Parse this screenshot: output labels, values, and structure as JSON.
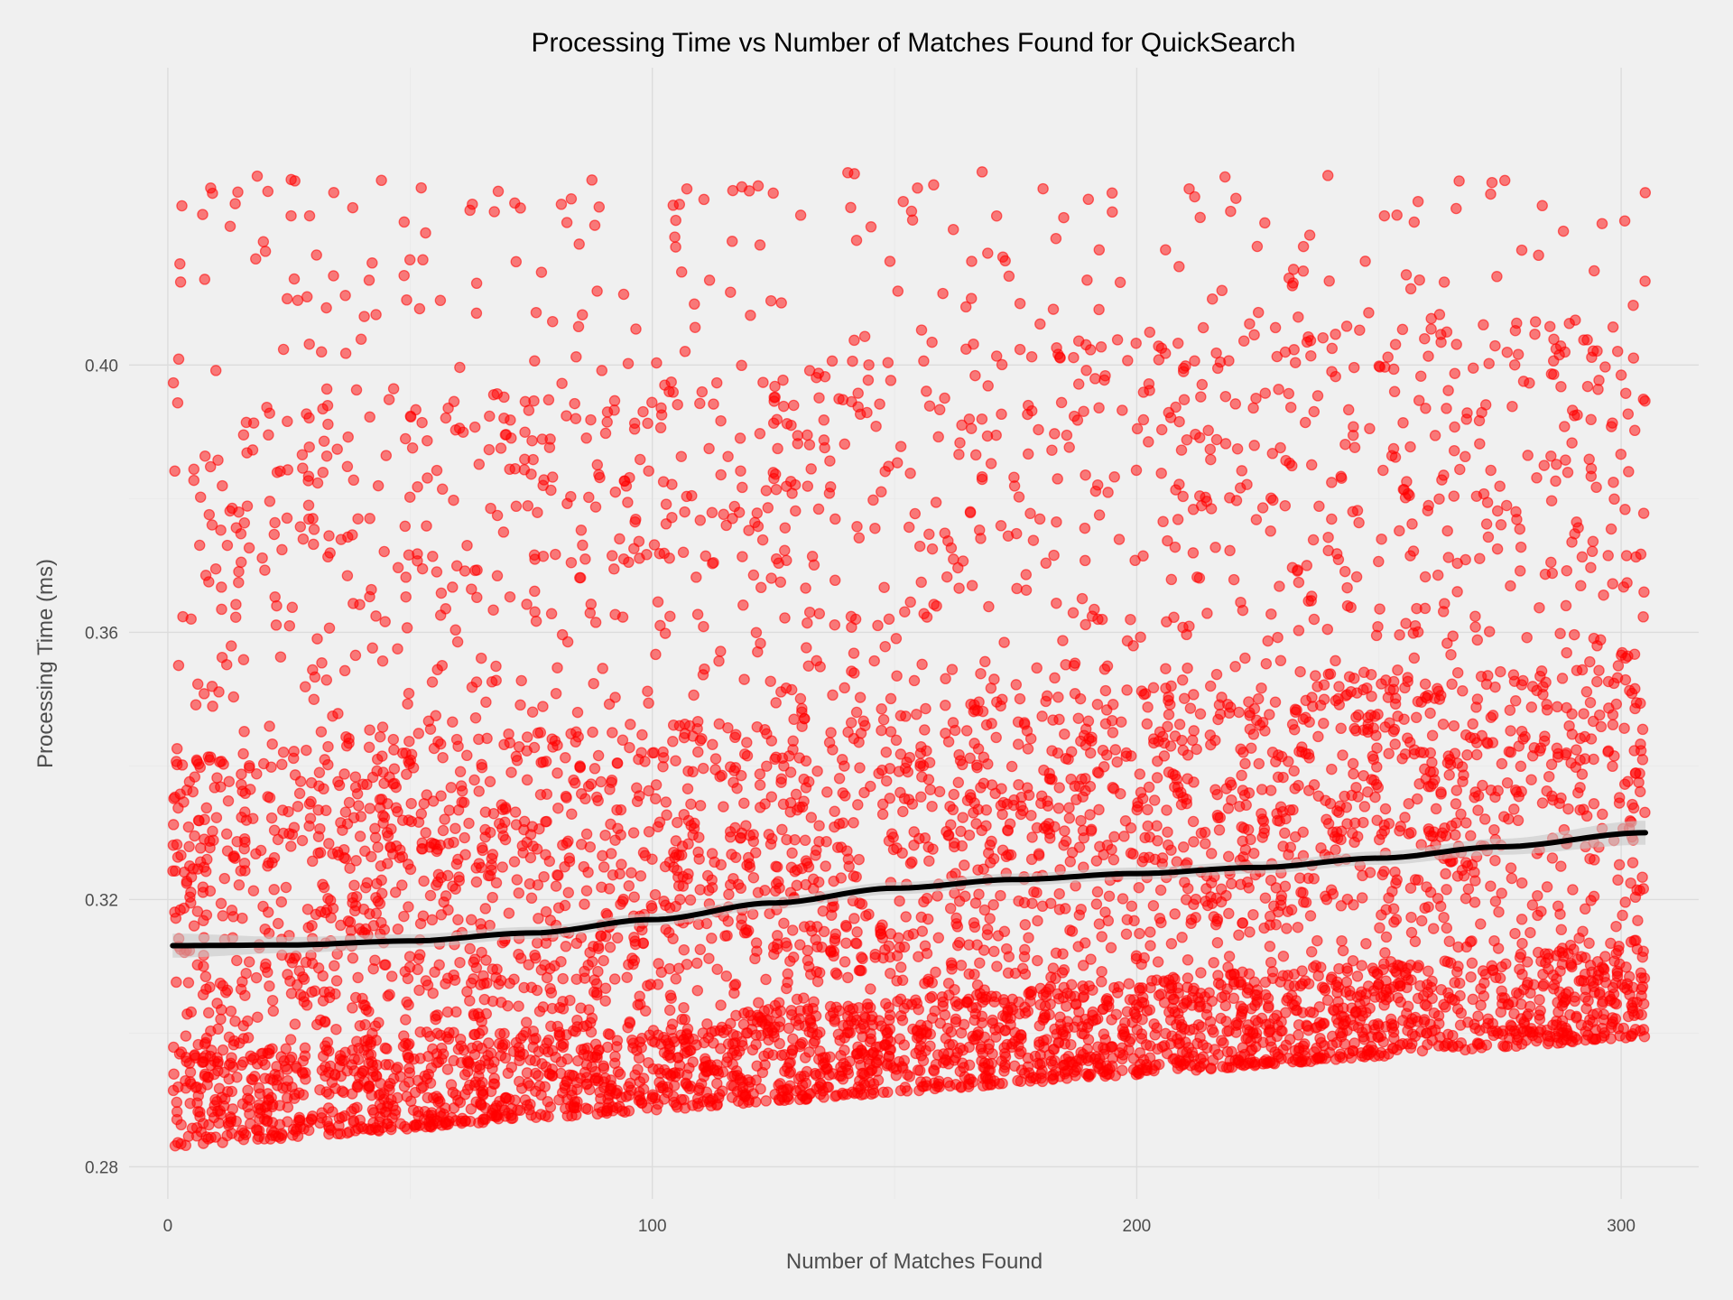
{
  "chart_data": {
    "type": "scatter",
    "title": "Processing Time vs Number of Matches Found for QuickSearch",
    "xlabel": "Number of Matches Found",
    "ylabel": "Processing Time (ms)",
    "xlim": [
      -8,
      316
    ],
    "ylim": [
      0.2752,
      0.4445
    ],
    "x_ticks": [
      0,
      100,
      200,
      300
    ],
    "x_tick_labels": [
      "0",
      "100",
      "200",
      "300"
    ],
    "y_ticks": [
      0.28,
      0.32,
      0.36,
      0.4
    ],
    "y_tick_labels": [
      "0.28",
      "0.32",
      "0.36",
      "0.40"
    ],
    "grid": true,
    "legend": "none",
    "point_color": "#ff0000",
    "point_opacity": 0.5,
    "x_range": [
      1,
      305
    ],
    "y_range": [
      0.281,
      0.429
    ],
    "point_count_approx": 6000,
    "point_distribution": "dense band hugging a lower floor that rises from about 0.283 at x=0 to about 0.300 at x=305, with sparse points spread up to about 0.43",
    "trend": {
      "method": "smoothed",
      "color": "#000000",
      "ci_color": "#bdbdbd",
      "x": [
        1,
        25,
        50,
        75,
        100,
        125,
        150,
        175,
        200,
        225,
        250,
        275,
        305
      ],
      "y": [
        0.3131,
        0.3132,
        0.3138,
        0.315,
        0.317,
        0.3195,
        0.3217,
        0.323,
        0.3239,
        0.3248,
        0.3262,
        0.3279,
        0.33
      ],
      "ci_halfwidth": [
        0.0018,
        0.0012,
        0.001,
        0.0009,
        0.0009,
        0.0009,
        0.0009,
        0.0009,
        0.0009,
        0.0009,
        0.001,
        0.0012,
        0.0018
      ]
    }
  }
}
